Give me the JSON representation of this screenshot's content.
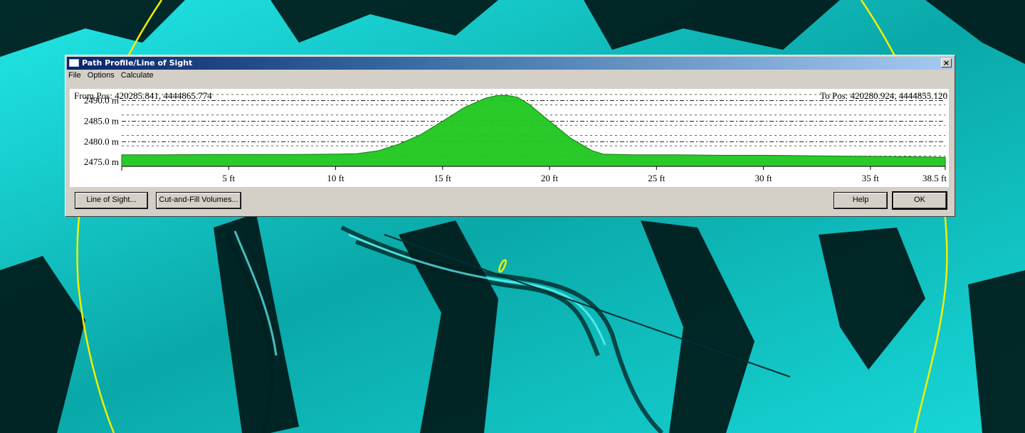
{
  "window": {
    "title": "Path Profile/Line of Sight",
    "close_glyph": "×"
  },
  "menu": [
    "File",
    "Options",
    "Calculate"
  ],
  "profile": {
    "from_pos": "From Pos: 420285.841, 4444865.774",
    "to_pos": "To Pos: 420280.924, 4444855.120"
  },
  "chart_data": {
    "type": "area",
    "title": "",
    "xlabel": "",
    "ylabel": "",
    "x_unit": "ft",
    "y_unit": "m",
    "xlim": [
      0,
      38.5
    ],
    "ylim": [
      2474,
      2492
    ],
    "x_ticks": [
      "5 ft",
      "10 ft",
      "15 ft",
      "20 ft",
      "25 ft",
      "30 ft",
      "35 ft",
      "38.5 ft"
    ],
    "y_ticks": [
      "2490.0 m",
      "2485.0 m",
      "2480.0 m",
      "2475.0 m"
    ],
    "grid": true,
    "fill_color": "#1fc71f",
    "x": [
      0,
      2,
      4,
      6,
      8,
      10,
      11,
      12,
      13,
      14,
      15,
      16,
      17,
      17.5,
      18,
      18.5,
      19,
      20,
      21,
      22,
      22.5,
      24,
      26,
      28,
      30,
      32,
      34,
      36,
      38.5
    ],
    "y": [
      2476.8,
      2476.8,
      2476.9,
      2476.9,
      2476.9,
      2477.0,
      2477.1,
      2477.8,
      2479.5,
      2481.8,
      2485.0,
      2488.3,
      2490.6,
      2491.2,
      2491.3,
      2490.8,
      2489.3,
      2485.0,
      2480.8,
      2477.8,
      2477.0,
      2476.8,
      2476.8,
      2476.7,
      2476.7,
      2476.6,
      2476.5,
      2476.4,
      2476.2
    ]
  },
  "buttons": {
    "line_of_sight": "Line of Sight...",
    "cut_fill": "Cut-and-Fill Volumes...",
    "help": "Help",
    "ok": "OK"
  },
  "colors": {
    "terrain": "#00e6e6",
    "search_circle": "#f0f000",
    "profile_fill": "#1fc71f"
  }
}
